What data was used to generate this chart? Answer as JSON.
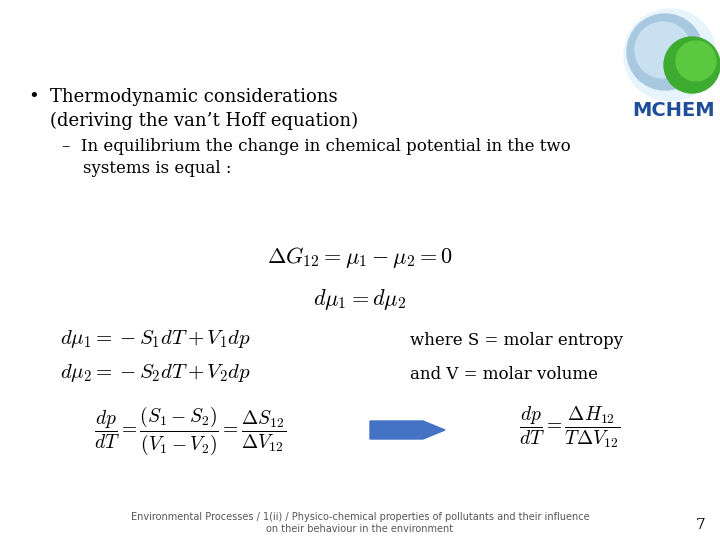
{
  "bg_color": "#ffffff",
  "text_color": "#000000",
  "bullet_text_line1": "Thermodynamic considerations",
  "bullet_text_line2": "(deriving the van’t Hoff equation)",
  "sub_bullet_line1": "–  In equilibrium the change in chemical potential in the two",
  "sub_bullet_line2": "    systems is equal :",
  "footer_line1": "Environmental Processes / 1(ii) / Physico-chemical properties of pollutants and their influence",
  "footer_line2": "on their behaviour in the environment",
  "page_number": "7",
  "mchem_color": "#1F4E99",
  "arrow_color": "#4472C4",
  "globe_color": "#A8C8E0",
  "globe_outer": "#C8DFF0",
  "leaf_color": "#4AAA3A",
  "footer_color": "#555555"
}
